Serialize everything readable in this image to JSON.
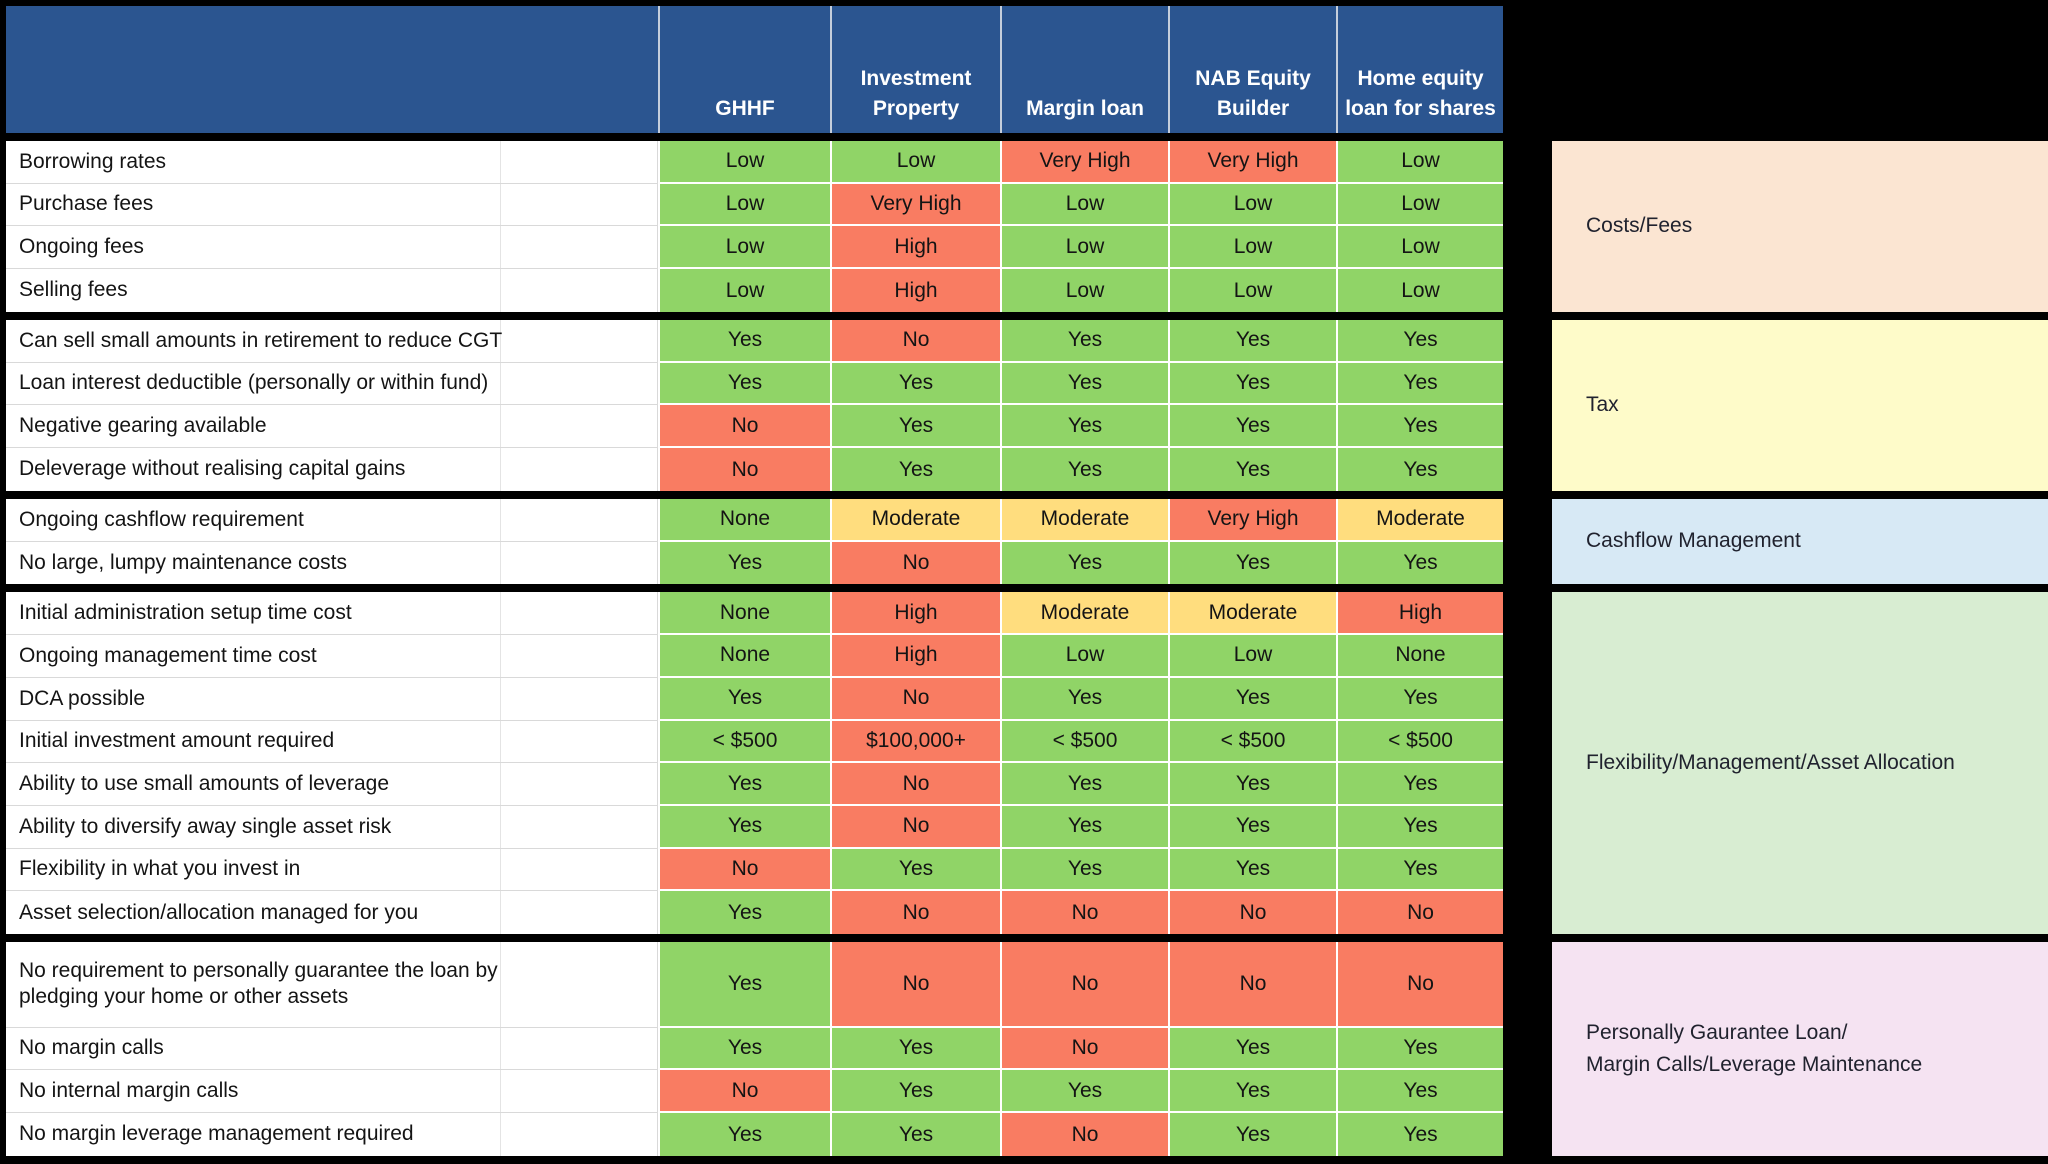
{
  "page": {
    "background": "#000000"
  },
  "chart_data": {
    "type": "table",
    "header_color": "#2B5590",
    "tone_colors": {
      "good": "#90D467",
      "bad": "#F97C62",
      "mid": "#FFDD7E"
    },
    "columns": [
      "GHHF",
      "Investment Property",
      "Margin loan",
      "NAB Equity Builder",
      "Home equity loan for shares"
    ],
    "groups": [
      {
        "category": "Costs/Fees",
        "panel_color": "#FBE5D2",
        "rows": [
          {
            "label": "Borrowing rates",
            "values": [
              "Low",
              "Low",
              "Very High",
              "Very High",
              "Low"
            ],
            "tones": [
              "good",
              "good",
              "bad",
              "bad",
              "good"
            ]
          },
          {
            "label": "Purchase fees",
            "values": [
              "Low",
              "Very High",
              "Low",
              "Low",
              "Low"
            ],
            "tones": [
              "good",
              "bad",
              "good",
              "good",
              "good"
            ]
          },
          {
            "label": "Ongoing fees",
            "values": [
              "Low",
              "High",
              "Low",
              "Low",
              "Low"
            ],
            "tones": [
              "good",
              "bad",
              "good",
              "good",
              "good"
            ]
          },
          {
            "label": "Selling fees",
            "values": [
              "Low",
              "High",
              "Low",
              "Low",
              "Low"
            ],
            "tones": [
              "good",
              "bad",
              "good",
              "good",
              "good"
            ]
          }
        ]
      },
      {
        "category": "Tax",
        "panel_color": "#FEFBC9",
        "rows": [
          {
            "label": "Can sell small amounts in retirement to reduce CGT",
            "values": [
              "Yes",
              "No",
              "Yes",
              "Yes",
              "Yes"
            ],
            "tones": [
              "good",
              "bad",
              "good",
              "good",
              "good"
            ]
          },
          {
            "label": "Loan interest deductible (personally or within fund)",
            "values": [
              "Yes",
              "Yes",
              "Yes",
              "Yes",
              "Yes"
            ],
            "tones": [
              "good",
              "good",
              "good",
              "good",
              "good"
            ]
          },
          {
            "label": "Negative gearing available",
            "values": [
              "No",
              "Yes",
              "Yes",
              "Yes",
              "Yes"
            ],
            "tones": [
              "bad",
              "good",
              "good",
              "good",
              "good"
            ]
          },
          {
            "label": "Deleverage without realising capital gains",
            "values": [
              "No",
              "Yes",
              "Yes",
              "Yes",
              "Yes"
            ],
            "tones": [
              "bad",
              "good",
              "good",
              "good",
              "good"
            ]
          }
        ]
      },
      {
        "category": "Cashflow Management",
        "panel_color": "#D7E9F5",
        "rows": [
          {
            "label": "Ongoing cashflow requirement",
            "values": [
              "None",
              "Moderate",
              "Moderate",
              "Very High",
              "Moderate"
            ],
            "tones": [
              "good",
              "mid",
              "mid",
              "bad",
              "mid"
            ]
          },
          {
            "label": "No large, lumpy maintenance costs",
            "values": [
              "Yes",
              "No",
              "Yes",
              "Yes",
              "Yes"
            ],
            "tones": [
              "good",
              "bad",
              "good",
              "good",
              "good"
            ]
          }
        ]
      },
      {
        "category": "Flexibility/Management/Asset Allocation",
        "panel_color": "#D8EDD2",
        "rows": [
          {
            "label": "Initial administration setup time cost",
            "values": [
              "None",
              "High",
              "Moderate",
              "Moderate",
              "High"
            ],
            "tones": [
              "good",
              "bad",
              "mid",
              "mid",
              "bad"
            ]
          },
          {
            "label": "Ongoing management time cost",
            "values": [
              "None",
              "High",
              "Low",
              "Low",
              "None"
            ],
            "tones": [
              "good",
              "bad",
              "good",
              "good",
              "good"
            ]
          },
          {
            "label": "DCA possible",
            "values": [
              "Yes",
              "No",
              "Yes",
              "Yes",
              "Yes"
            ],
            "tones": [
              "good",
              "bad",
              "good",
              "good",
              "good"
            ]
          },
          {
            "label": "Initial investment amount required",
            "values": [
              "< $500",
              "$100,000+",
              "< $500",
              "< $500",
              "< $500"
            ],
            "tones": [
              "good",
              "bad",
              "good",
              "good",
              "good"
            ]
          },
          {
            "label": "Ability to use small amounts of leverage",
            "values": [
              "Yes",
              "No",
              "Yes",
              "Yes",
              "Yes"
            ],
            "tones": [
              "good",
              "bad",
              "good",
              "good",
              "good"
            ]
          },
          {
            "label": "Ability to diversify away single asset risk",
            "values": [
              "Yes",
              "No",
              "Yes",
              "Yes",
              "Yes"
            ],
            "tones": [
              "good",
              "bad",
              "good",
              "good",
              "good"
            ]
          },
          {
            "label": "Flexibility in what you invest in",
            "values": [
              "No",
              "Yes",
              "Yes",
              "Yes",
              "Yes"
            ],
            "tones": [
              "bad",
              "good",
              "good",
              "good",
              "good"
            ]
          },
          {
            "label": "Asset selection/allocation managed for you",
            "values": [
              "Yes",
              "No",
              "No",
              "No",
              "No"
            ],
            "tones": [
              "good",
              "bad",
              "bad",
              "bad",
              "bad"
            ]
          }
        ]
      },
      {
        "category": "Personally Gaurantee Loan/\nMargin Calls/Leverage Maintenance",
        "panel_color": "#F5E3F2",
        "rows": [
          {
            "label": "No requirement to personally guarantee the loan by pledging your home or other assets",
            "tall": true,
            "values": [
              "Yes",
              "No",
              "No",
              "No",
              "No"
            ],
            "tones": [
              "good",
              "bad",
              "bad",
              "bad",
              "bad"
            ]
          },
          {
            "label": "No margin calls",
            "values": [
              "Yes",
              "Yes",
              "No",
              "Yes",
              "Yes"
            ],
            "tones": [
              "good",
              "good",
              "bad",
              "good",
              "good"
            ]
          },
          {
            "label": "No internal margin calls",
            "values": [
              "No",
              "Yes",
              "Yes",
              "Yes",
              "Yes"
            ],
            "tones": [
              "bad",
              "good",
              "good",
              "good",
              "good"
            ]
          },
          {
            "label": "No margin leverage management required",
            "values": [
              "Yes",
              "Yes",
              "No",
              "Yes",
              "Yes"
            ],
            "tones": [
              "good",
              "good",
              "bad",
              "good",
              "good"
            ]
          }
        ]
      }
    ]
  }
}
